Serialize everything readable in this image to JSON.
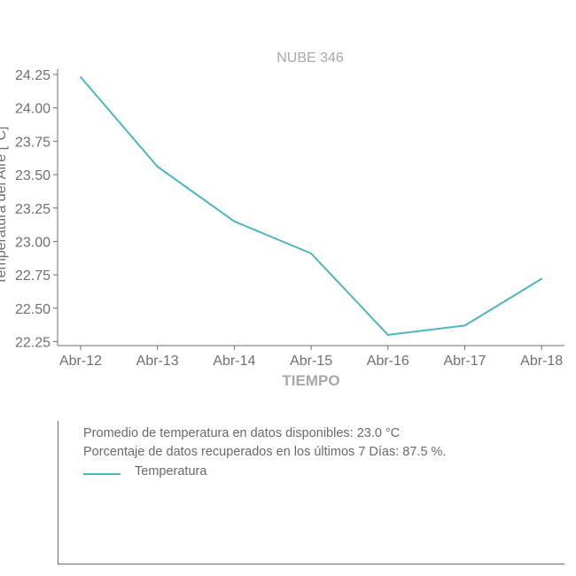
{
  "chart_data": {
    "type": "line",
    "title": "NUBE 346",
    "xlabel": "TIEMPO",
    "ylabel": "Temperatura del Aire [°C]",
    "categories": [
      "Abr-12",
      "Abr-13",
      "Abr-14",
      "Abr-15",
      "Abr-16",
      "Abr-17",
      "Abr-18"
    ],
    "series": [
      {
        "name": "Temperatura",
        "values": [
          24.23,
          23.56,
          23.15,
          22.91,
          22.3,
          22.37,
          22.72
        ],
        "color": "#4eb6be"
      }
    ],
    "yticks": [
      "24.25",
      "24.00",
      "23.75",
      "23.50",
      "23.25",
      "23.00",
      "22.75",
      "22.50",
      "22.25"
    ],
    "ytick_values": [
      24.25,
      24.0,
      23.75,
      23.5,
      23.25,
      23.0,
      22.75,
      22.5,
      22.25
    ],
    "ylim": [
      22.22,
      24.29
    ],
    "grid": false,
    "legend_position": "below"
  },
  "info": {
    "line1": "Promedio de temperatura en datos disponibles: 23.0 °C",
    "line2": "Porcentaje de datos recuperados en los últimos 7 Días: 87.5 %."
  },
  "legend": {
    "label": "Temperatura",
    "color": "#4eb6be"
  }
}
